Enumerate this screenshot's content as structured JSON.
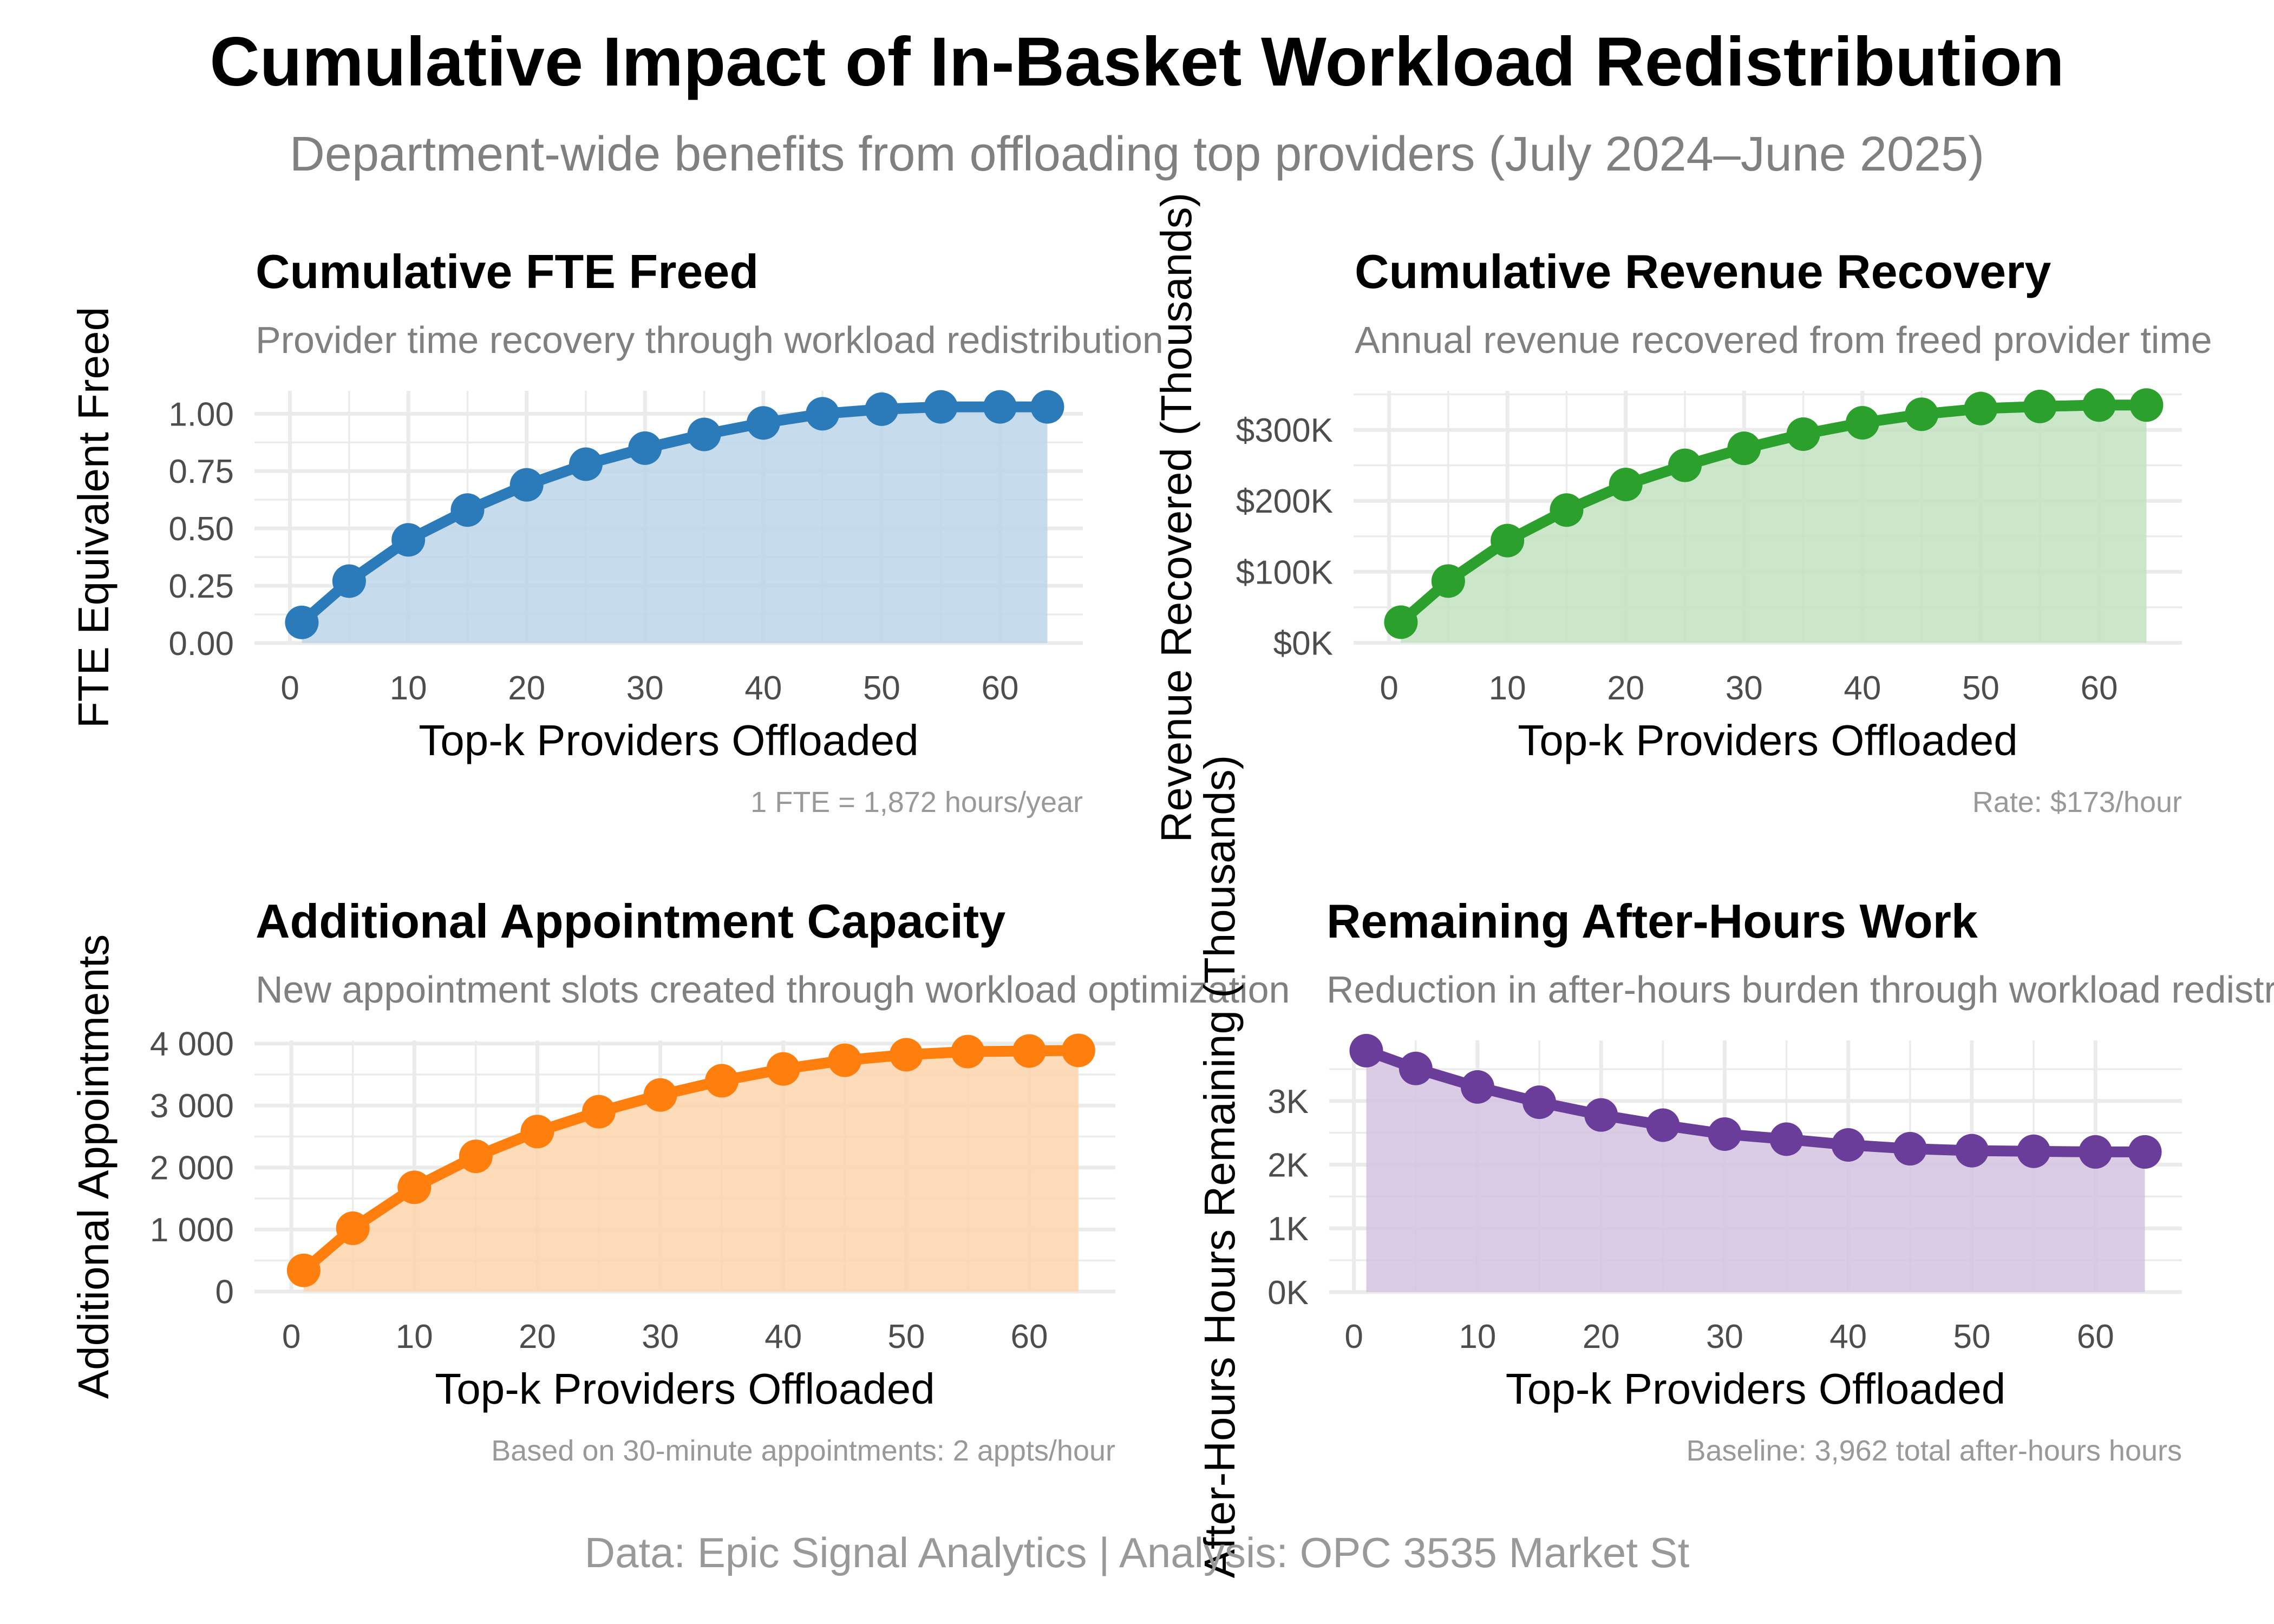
{
  "title": "Cumulative Impact of In-Basket Workload Redistribution",
  "subtitle": "Department-wide benefits from offloading top providers (July 2024–June 2025)",
  "caption": "Data: Epic Signal Analytics | Analysis: OPC 3535 Market St",
  "colors": {
    "text": "#000000",
    "subtext": "#808080",
    "note": "#999999",
    "tick": "#4d4d4d",
    "grid": "#ebebeb"
  },
  "chart_data": [
    {
      "type": "area",
      "title": "Cumulative FTE Freed",
      "subtitle": "Provider time recovery through workload redistribution",
      "xlabel": "Top-k Providers Offloaded",
      "ylabel": "FTE Equivalent Freed",
      "note": "1 FTE = 1,872 hours/year",
      "line_color": "#2b7bba",
      "fill_color": "#bcd6ea",
      "xlim": [
        -3,
        67
      ],
      "ylim": [
        -0.005,
        1.1
      ],
      "xticks": [
        0,
        10,
        20,
        30,
        40,
        50,
        60
      ],
      "xtick_labels": [
        "0",
        "10",
        "20",
        "30",
        "40",
        "50",
        "60"
      ],
      "yticks": [
        0,
        0.25,
        0.5,
        0.75,
        1.0
      ],
      "ytick_labels": [
        "0.00",
        "0.25",
        "0.50",
        "0.75",
        "1.00"
      ],
      "grid": true,
      "x": [
        1,
        5,
        10,
        15,
        20,
        25,
        30,
        35,
        40,
        45,
        50,
        55,
        60,
        64
      ],
      "y": [
        0.09,
        0.27,
        0.45,
        0.58,
        0.69,
        0.78,
        0.85,
        0.91,
        0.96,
        1.0,
        1.02,
        1.03,
        1.03,
        1.03
      ]
    },
    {
      "type": "area",
      "title": "Cumulative Revenue Recovery",
      "subtitle": "Annual revenue recovered from freed provider time",
      "xlabel": "Top-k Providers Offloaded",
      "ylabel": "Revenue Recovered (Thousands)",
      "note": "Rate: $173/hour",
      "line_color": "#2ca02c",
      "fill_color": "#c2e2c0",
      "xlim": [
        -3,
        67
      ],
      "ylim": [
        -2000,
        355000
      ],
      "xticks": [
        0,
        10,
        20,
        30,
        40,
        50,
        60
      ],
      "xtick_labels": [
        "0",
        "10",
        "20",
        "30",
        "40",
        "50",
        "60"
      ],
      "yticks": [
        0,
        100000,
        200000,
        300000
      ],
      "ytick_labels": [
        "$0K",
        "$100K",
        "$200K",
        "$300K"
      ],
      "grid": true,
      "x": [
        1,
        5,
        10,
        15,
        20,
        25,
        30,
        35,
        40,
        45,
        50,
        55,
        60,
        64
      ],
      "y": [
        29000,
        87000,
        144000,
        187000,
        223000,
        250000,
        274000,
        294000,
        310000,
        322000,
        330000,
        333000,
        335000,
        335000
      ]
    },
    {
      "type": "area",
      "title": "Additional Appointment Capacity",
      "subtitle": "New appointment slots created through workload optimization",
      "xlabel": "Top-k Providers Offloaded",
      "ylabel": "Additional Appointments",
      "note": "Based on 30-minute appointments: 2 appts/hour",
      "line_color": "#ff7f0e",
      "fill_color": "#fdd5ad",
      "xlim": [
        -3,
        67
      ],
      "ylim": [
        -20,
        4050
      ],
      "xticks": [
        0,
        10,
        20,
        30,
        40,
        50,
        60
      ],
      "xtick_labels": [
        "0",
        "10",
        "20",
        "30",
        "40",
        "50",
        "60"
      ],
      "yticks": [
        0,
        1000,
        2000,
        3000,
        4000
      ],
      "ytick_labels": [
        "0",
        "1 000",
        "2 000",
        "3 000",
        "4 000"
      ],
      "grid": true,
      "x": [
        1,
        5,
        10,
        15,
        20,
        25,
        30,
        35,
        40,
        45,
        50,
        55,
        60,
        64
      ],
      "y": [
        340,
        1020,
        1680,
        2180,
        2580,
        2900,
        3170,
        3400,
        3590,
        3730,
        3820,
        3870,
        3880,
        3890
      ]
    },
    {
      "type": "area",
      "title": "Remaining After-Hours Work",
      "subtitle": "Reduction in after-hours burden through workload redistribution",
      "xlabel": "Top-k Providers Offloaded",
      "ylabel": "After-Hours Hours Remaining (Thousands)",
      "note": "Baseline: 3,962 total after-hours hours",
      "line_color": "#6a3d9a",
      "fill_color": "#d4c3e1",
      "xlim": [
        -2,
        67
      ],
      "ylim": [
        -10,
        3950
      ],
      "xticks": [
        0,
        10,
        20,
        30,
        40,
        50,
        60
      ],
      "xtick_labels": [
        "0",
        "10",
        "20",
        "30",
        "40",
        "50",
        "60"
      ],
      "yticks": [
        0,
        1000,
        2000,
        3000
      ],
      "ytick_labels": [
        "0K",
        "1K",
        "2K",
        "3K"
      ],
      "grid": true,
      "x": [
        1,
        5,
        10,
        15,
        20,
        25,
        30,
        35,
        40,
        45,
        50,
        55,
        60,
        64
      ],
      "y": [
        3790,
        3510,
        3220,
        2980,
        2780,
        2620,
        2480,
        2400,
        2310,
        2250,
        2220,
        2210,
        2200,
        2200
      ]
    }
  ]
}
